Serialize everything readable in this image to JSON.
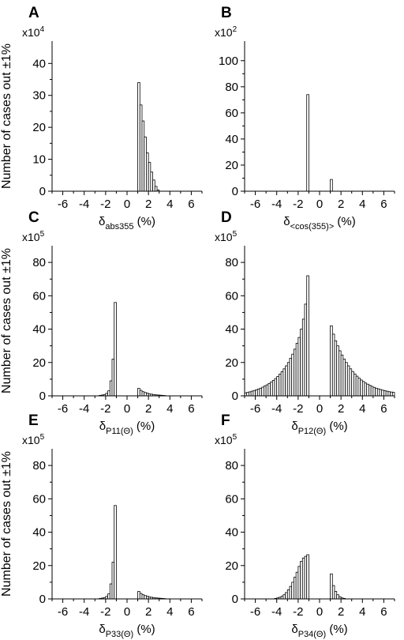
{
  "chart_data": [
    {
      "type": "bar",
      "panel_label": "A",
      "xlabel_main": "δ",
      "xlabel_sub": "abs355",
      "xlabel_unit": " (%)",
      "ylabel": "Number of cases out ±1%",
      "scale_base": "x10",
      "scale_exp": "4",
      "xlim": [
        -7,
        7
      ],
      "ylim": [
        0,
        47
      ],
      "xticks": [
        -6,
        -4,
        -2,
        0,
        2,
        4,
        6
      ],
      "yticks": [
        0,
        10,
        20,
        30,
        40
      ],
      "bin_width": 0.2,
      "bins": [
        {
          "x": 1.1,
          "y": 34
        },
        {
          "x": 1.3,
          "y": 27
        },
        {
          "x": 1.5,
          "y": 22
        },
        {
          "x": 1.7,
          "y": 17
        },
        {
          "x": 1.9,
          "y": 12
        },
        {
          "x": 2.1,
          "y": 9
        },
        {
          "x": 2.3,
          "y": 6
        },
        {
          "x": 2.5,
          "y": 3.5
        },
        {
          "x": 2.7,
          "y": 1.5
        },
        {
          "x": 2.9,
          "y": 0.4
        }
      ]
    },
    {
      "type": "bar",
      "panel_label": "B",
      "xlabel_main": "δ",
      "xlabel_sub": "<cos(355)>",
      "xlabel_unit": " (%)",
      "ylabel": "",
      "scale_base": "x10",
      "scale_exp": "2",
      "xlim": [
        -7,
        7
      ],
      "ylim": [
        0,
        115
      ],
      "xticks": [
        -6,
        -4,
        -2,
        0,
        2,
        4,
        6
      ],
      "yticks": [
        0,
        20,
        40,
        60,
        80,
        100
      ],
      "bin_width": 0.2,
      "bins": [
        {
          "x": -1.1,
          "y": 74
        },
        {
          "x": 1.1,
          "y": 9
        }
      ]
    },
    {
      "type": "bar",
      "panel_label": "C",
      "xlabel_main": "δ",
      "xlabel_sub": "P11(Θ)",
      "xlabel_unit": " (%)",
      "ylabel": "Number of cases out ±1%",
      "scale_base": "x10",
      "scale_exp": "5",
      "xlim": [
        -7,
        7
      ],
      "ylim": [
        0,
        90
      ],
      "xticks": [
        -6,
        -4,
        -2,
        0,
        2,
        4,
        6
      ],
      "yticks": [
        0,
        20,
        40,
        60,
        80
      ],
      "bin_width": 0.2,
      "bins": [
        {
          "x": -2.5,
          "y": 0.3
        },
        {
          "x": -2.3,
          "y": 0.5
        },
        {
          "x": -2.1,
          "y": 0.8
        },
        {
          "x": -1.9,
          "y": 1.5
        },
        {
          "x": -1.7,
          "y": 3
        },
        {
          "x": -1.5,
          "y": 9
        },
        {
          "x": -1.3,
          "y": 22
        },
        {
          "x": -1.1,
          "y": 56
        },
        {
          "x": 1.1,
          "y": 4.5
        },
        {
          "x": 1.3,
          "y": 3.3
        },
        {
          "x": 1.5,
          "y": 2.5
        },
        {
          "x": 1.7,
          "y": 2
        },
        {
          "x": 1.9,
          "y": 1.6
        },
        {
          "x": 2.1,
          "y": 1.2
        },
        {
          "x": 2.3,
          "y": 1
        },
        {
          "x": 2.5,
          "y": 0.8
        },
        {
          "x": 2.7,
          "y": 0.6
        },
        {
          "x": 2.9,
          "y": 0.5
        },
        {
          "x": 3.1,
          "y": 0.4
        },
        {
          "x": 3.3,
          "y": 0.3
        },
        {
          "x": 3.5,
          "y": 0.2
        }
      ]
    },
    {
      "type": "bar",
      "panel_label": "D",
      "xlabel_main": "δ",
      "xlabel_sub": "P12(Θ)",
      "xlabel_unit": " (%)",
      "ylabel": "",
      "scale_base": "x10",
      "scale_exp": "5",
      "xlim": [
        -7,
        7
      ],
      "ylim": [
        0,
        90
      ],
      "xticks": [
        -6,
        -4,
        -2,
        0,
        2,
        4,
        6
      ],
      "yticks": [
        0,
        20,
        40,
        60,
        80
      ],
      "bin_width": 0.2,
      "bins": [
        {
          "x": -6.9,
          "y": 1.8
        },
        {
          "x": -6.7,
          "y": 2.1
        },
        {
          "x": -6.5,
          "y": 2.4
        },
        {
          "x": -6.3,
          "y": 2.8
        },
        {
          "x": -6.1,
          "y": 3.2
        },
        {
          "x": -5.9,
          "y": 3.6
        },
        {
          "x": -5.7,
          "y": 4.1
        },
        {
          "x": -5.5,
          "y": 4.6
        },
        {
          "x": -5.3,
          "y": 5.2
        },
        {
          "x": -5.1,
          "y": 5.9
        },
        {
          "x": -4.9,
          "y": 6.6
        },
        {
          "x": -4.7,
          "y": 7.4
        },
        {
          "x": -4.5,
          "y": 8.3
        },
        {
          "x": -4.3,
          "y": 9.3
        },
        {
          "x": -4.1,
          "y": 10.4
        },
        {
          "x": -3.9,
          "y": 11.6
        },
        {
          "x": -3.7,
          "y": 13
        },
        {
          "x": -3.5,
          "y": 14.5
        },
        {
          "x": -3.3,
          "y": 16.2
        },
        {
          "x": -3.1,
          "y": 18
        },
        {
          "x": -2.9,
          "y": 20
        },
        {
          "x": -2.7,
          "y": 22.5
        },
        {
          "x": -2.5,
          "y": 25
        },
        {
          "x": -2.3,
          "y": 28
        },
        {
          "x": -2.1,
          "y": 31.5
        },
        {
          "x": -1.9,
          "y": 35
        },
        {
          "x": -1.7,
          "y": 40
        },
        {
          "x": -1.5,
          "y": 46
        },
        {
          "x": -1.3,
          "y": 55
        },
        {
          "x": -1.1,
          "y": 72
        },
        {
          "x": 1.1,
          "y": 42
        },
        {
          "x": 1.3,
          "y": 37
        },
        {
          "x": 1.5,
          "y": 33
        },
        {
          "x": 1.7,
          "y": 30
        },
        {
          "x": 1.9,
          "y": 27
        },
        {
          "x": 2.1,
          "y": 24.5
        },
        {
          "x": 2.3,
          "y": 22
        },
        {
          "x": 2.5,
          "y": 20
        },
        {
          "x": 2.7,
          "y": 18
        },
        {
          "x": 2.9,
          "y": 16.2
        },
        {
          "x": 3.1,
          "y": 14.6
        },
        {
          "x": 3.3,
          "y": 13.1
        },
        {
          "x": 3.5,
          "y": 11.8
        },
        {
          "x": 3.7,
          "y": 10.6
        },
        {
          "x": 3.9,
          "y": 9.5
        },
        {
          "x": 4.1,
          "y": 8.6
        },
        {
          "x": 4.3,
          "y": 7.7
        },
        {
          "x": 4.5,
          "y": 7
        },
        {
          "x": 4.7,
          "y": 6.3
        },
        {
          "x": 4.9,
          "y": 5.7
        },
        {
          "x": 5.1,
          "y": 5.1
        },
        {
          "x": 5.3,
          "y": 4.6
        },
        {
          "x": 5.5,
          "y": 4.2
        },
        {
          "x": 5.7,
          "y": 3.8
        },
        {
          "x": 5.9,
          "y": 3.4
        },
        {
          "x": 6.1,
          "y": 3.1
        },
        {
          "x": 6.3,
          "y": 2.8
        },
        {
          "x": 6.5,
          "y": 2.5
        },
        {
          "x": 6.7,
          "y": 2.3
        },
        {
          "x": 6.9,
          "y": 2.1
        }
      ]
    },
    {
      "type": "bar",
      "panel_label": "E",
      "xlabel_main": "δ",
      "xlabel_sub": "P33(Θ)",
      "xlabel_unit": " (%)",
      "ylabel": "Number of cases out ±1%",
      "scale_base": "x10",
      "scale_exp": "5",
      "xlim": [
        -7,
        7
      ],
      "ylim": [
        0,
        90
      ],
      "xticks": [
        -6,
        -4,
        -2,
        0,
        2,
        4,
        6
      ],
      "yticks": [
        0,
        20,
        40,
        60,
        80
      ],
      "bin_width": 0.2,
      "bins": [
        {
          "x": -2.5,
          "y": 0.3
        },
        {
          "x": -2.3,
          "y": 0.5
        },
        {
          "x": -2.1,
          "y": 0.8
        },
        {
          "x": -1.9,
          "y": 1.5
        },
        {
          "x": -1.7,
          "y": 3
        },
        {
          "x": -1.5,
          "y": 9
        },
        {
          "x": -1.3,
          "y": 22
        },
        {
          "x": -1.1,
          "y": 56
        },
        {
          "x": 1.1,
          "y": 4.5
        },
        {
          "x": 1.3,
          "y": 3.3
        },
        {
          "x": 1.5,
          "y": 2.5
        },
        {
          "x": 1.7,
          "y": 2
        },
        {
          "x": 1.9,
          "y": 1.6
        },
        {
          "x": 2.1,
          "y": 1.2
        },
        {
          "x": 2.3,
          "y": 1
        },
        {
          "x": 2.5,
          "y": 0.8
        },
        {
          "x": 2.7,
          "y": 0.6
        },
        {
          "x": 2.9,
          "y": 0.5
        },
        {
          "x": 3.1,
          "y": 0.4
        },
        {
          "x": 3.3,
          "y": 0.3
        },
        {
          "x": 3.5,
          "y": 0.2
        }
      ]
    },
    {
      "type": "bar",
      "panel_label": "F",
      "xlabel_main": "δ",
      "xlabel_sub": "P34(Θ)",
      "xlabel_unit": " (%)",
      "ylabel": "",
      "scale_base": "x10",
      "scale_exp": "5",
      "xlim": [
        -7,
        7
      ],
      "ylim": [
        0,
        90
      ],
      "xticks": [
        -6,
        -4,
        -2,
        0,
        2,
        4,
        6
      ],
      "yticks": [
        0,
        20,
        40,
        60,
        80
      ],
      "bin_width": 0.2,
      "bins": [
        {
          "x": -4.1,
          "y": 0.3
        },
        {
          "x": -3.9,
          "y": 0.6
        },
        {
          "x": -3.7,
          "y": 1
        },
        {
          "x": -3.5,
          "y": 1.6
        },
        {
          "x": -3.3,
          "y": 2.5
        },
        {
          "x": -3.1,
          "y": 3.8
        },
        {
          "x": -2.9,
          "y": 5.5
        },
        {
          "x": -2.7,
          "y": 7.5
        },
        {
          "x": -2.5,
          "y": 10
        },
        {
          "x": -2.3,
          "y": 13
        },
        {
          "x": -2.1,
          "y": 16
        },
        {
          "x": -1.9,
          "y": 19.5
        },
        {
          "x": -1.7,
          "y": 22.5
        },
        {
          "x": -1.5,
          "y": 24.5
        },
        {
          "x": -1.3,
          "y": 25.5
        },
        {
          "x": -1.1,
          "y": 26.5
        },
        {
          "x": 1.1,
          "y": 15
        },
        {
          "x": 1.3,
          "y": 8
        },
        {
          "x": 1.5,
          "y": 4.5
        },
        {
          "x": 1.7,
          "y": 2.5
        },
        {
          "x": 1.9,
          "y": 1.3
        },
        {
          "x": 2.1,
          "y": 0.6
        },
        {
          "x": 2.3,
          "y": 0.3
        }
      ]
    }
  ]
}
